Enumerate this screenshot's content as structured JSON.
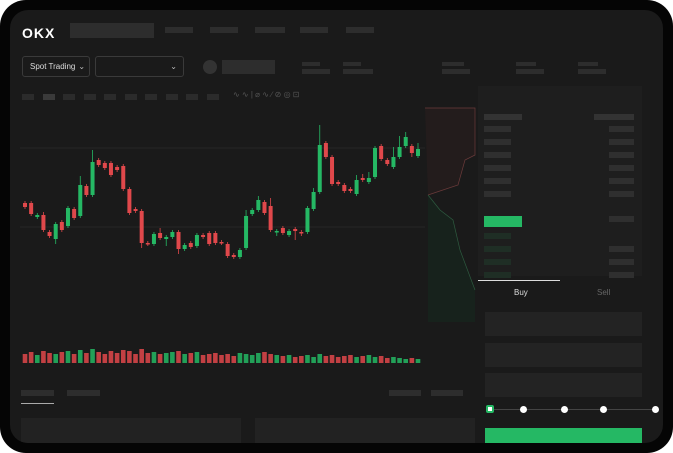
{
  "header": {
    "logo": "OKX"
  },
  "toolbar": {
    "market_select": "Spot Trading",
    "pair_select": ""
  },
  "trade": {
    "buy_tab": "Buy",
    "sell_tab": "Sell",
    "active_tab": "Buy",
    "leverage_slider_fraction": 0
  },
  "colors": {
    "up": "#25b864",
    "down": "#e0484b",
    "bg": "#1a1a1a"
  },
  "icons": [
    "chevron-down-icon",
    "orderbook-both-icon",
    "orderbook-bids-icon",
    "orderbook-asks-icon"
  ],
  "chart_data": {
    "type": "candlestick",
    "ohlc": [
      [
        97,
        99,
        91,
        93
      ],
      [
        97,
        99,
        84,
        86
      ],
      [
        83,
        87,
        81,
        85
      ],
      [
        85,
        88,
        68,
        70
      ],
      [
        68,
        70,
        62,
        64
      ],
      [
        61,
        78,
        56,
        76
      ],
      [
        78,
        80,
        68,
        70
      ],
      [
        74,
        94,
        72,
        92
      ],
      [
        91,
        93,
        80,
        82
      ],
      [
        84,
        124,
        82,
        115
      ],
      [
        114,
        116,
        103,
        105
      ],
      [
        105,
        150,
        103,
        138
      ],
      [
        140,
        142,
        133,
        135
      ],
      [
        137,
        139,
        130,
        132
      ],
      [
        137,
        139,
        123,
        125
      ],
      [
        133,
        135,
        128,
        130
      ],
      [
        134,
        136,
        109,
        111
      ],
      [
        111,
        113,
        85,
        87
      ],
      [
        91,
        93,
        87,
        89
      ],
      [
        89,
        91,
        52,
        57
      ],
      [
        57,
        59,
        54,
        56
      ],
      [
        56,
        68,
        54,
        66
      ],
      [
        67,
        72,
        60,
        62
      ],
      [
        61,
        65,
        54,
        63
      ],
      [
        63,
        70,
        61,
        68
      ],
      [
        68,
        70,
        46,
        51
      ],
      [
        51,
        57,
        49,
        55
      ],
      [
        57,
        59,
        51,
        53
      ],
      [
        54,
        67,
        52,
        65
      ],
      [
        65,
        67,
        61,
        63
      ],
      [
        67,
        69,
        54,
        56
      ],
      [
        67,
        69,
        55,
        57
      ],
      [
        58,
        60,
        55,
        57
      ],
      [
        56,
        58,
        42,
        44
      ],
      [
        45,
        47,
        41,
        43
      ],
      [
        43,
        52,
        41,
        50
      ],
      [
        52,
        90,
        50,
        84
      ],
      [
        86,
        92,
        84,
        90
      ],
      [
        90,
        104,
        88,
        100
      ],
      [
        98,
        100,
        85,
        87
      ],
      [
        94,
        102,
        68,
        70
      ],
      [
        68,
        71,
        64,
        69
      ],
      [
        72,
        74,
        65,
        67
      ],
      [
        65,
        71,
        63,
        69
      ],
      [
        71,
        73,
        60,
        69
      ],
      [
        68,
        70,
        64,
        67
      ],
      [
        68,
        94,
        66,
        92
      ],
      [
        91,
        112,
        89,
        108
      ],
      [
        108,
        175,
        106,
        155
      ],
      [
        157,
        159,
        141,
        143
      ],
      [
        143,
        145,
        114,
        116
      ],
      [
        118,
        120,
        114,
        116
      ],
      [
        115,
        117,
        107,
        109
      ],
      [
        111,
        113,
        107,
        109
      ],
      [
        106,
        125,
        104,
        120
      ],
      [
        122,
        126,
        118,
        120
      ],
      [
        118,
        128,
        116,
        122
      ],
      [
        123,
        154,
        121,
        152
      ],
      [
        154,
        156,
        139,
        141
      ],
      [
        140,
        142,
        134,
        136
      ],
      [
        133,
        153,
        131,
        143
      ],
      [
        143,
        164,
        141,
        153
      ],
      [
        154,
        168,
        152,
        163
      ],
      [
        154,
        156,
        143,
        147
      ],
      [
        144,
        157,
        142,
        151
      ]
    ],
    "volume": [
      9,
      11,
      8,
      12,
      10,
      9,
      11,
      12,
      9,
      13,
      10,
      14,
      11,
      9,
      12,
      10,
      13,
      12,
      9,
      14,
      10,
      11,
      9,
      10,
      11,
      12,
      9,
      10,
      11,
      8,
      9,
      10,
      8,
      9,
      7,
      10,
      9,
      8,
      10,
      11,
      9,
      8,
      7,
      8,
      6,
      7,
      8,
      6,
      9,
      7,
      8,
      6,
      7,
      8,
      6,
      7,
      8,
      6,
      7,
      5,
      6,
      5,
      4,
      5,
      4
    ]
  }
}
